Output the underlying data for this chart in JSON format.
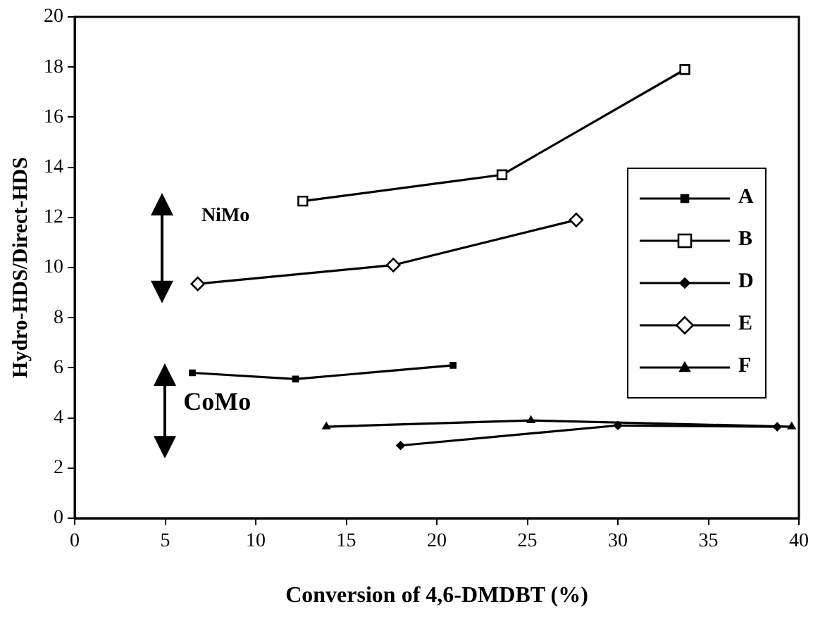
{
  "chart_data": {
    "type": "line",
    "xlabel": "Conversion of 4,6-DMDBT (%)",
    "ylabel": "Hydro-HDS/Direct-HDS",
    "xlim": [
      0,
      40
    ],
    "xticks": [
      0,
      5,
      10,
      15,
      20,
      25,
      30,
      35,
      40
    ],
    "ylim": [
      0,
      20
    ],
    "yticks": [
      0,
      2,
      4,
      6,
      8,
      10,
      12,
      14,
      16,
      18,
      20
    ],
    "grid": false,
    "legend": "right",
    "annotations": [
      "NiMo",
      "CoMo"
    ],
    "series": [
      {
        "name": "A",
        "color": "#000000",
        "marker": "square",
        "x": [
          6.5,
          12.2,
          20.9
        ],
        "values": [
          5.8,
          5.55,
          6.1
        ]
      },
      {
        "name": "B",
        "color": "#000000",
        "marker": "square",
        "x": [
          12.6,
          23.6,
          33.7
        ],
        "values": [
          12.65,
          13.7,
          17.9
        ]
      },
      {
        "name": "D",
        "color": "#000000",
        "marker": "diamond",
        "x": [
          18.0,
          30.0,
          38.8
        ],
        "values": [
          2.9,
          3.7,
          3.65
        ]
      },
      {
        "name": "E",
        "color": "#000000",
        "marker": "diamond",
        "x": [
          6.8,
          17.6,
          27.7
        ],
        "values": [
          9.35,
          10.1,
          11.9
        ]
      },
      {
        "name": "F",
        "color": "#000000",
        "marker": "triangle",
        "x": [
          13.9,
          25.2,
          39.6
        ],
        "values": [
          3.65,
          3.9,
          3.65
        ]
      }
    ]
  }
}
